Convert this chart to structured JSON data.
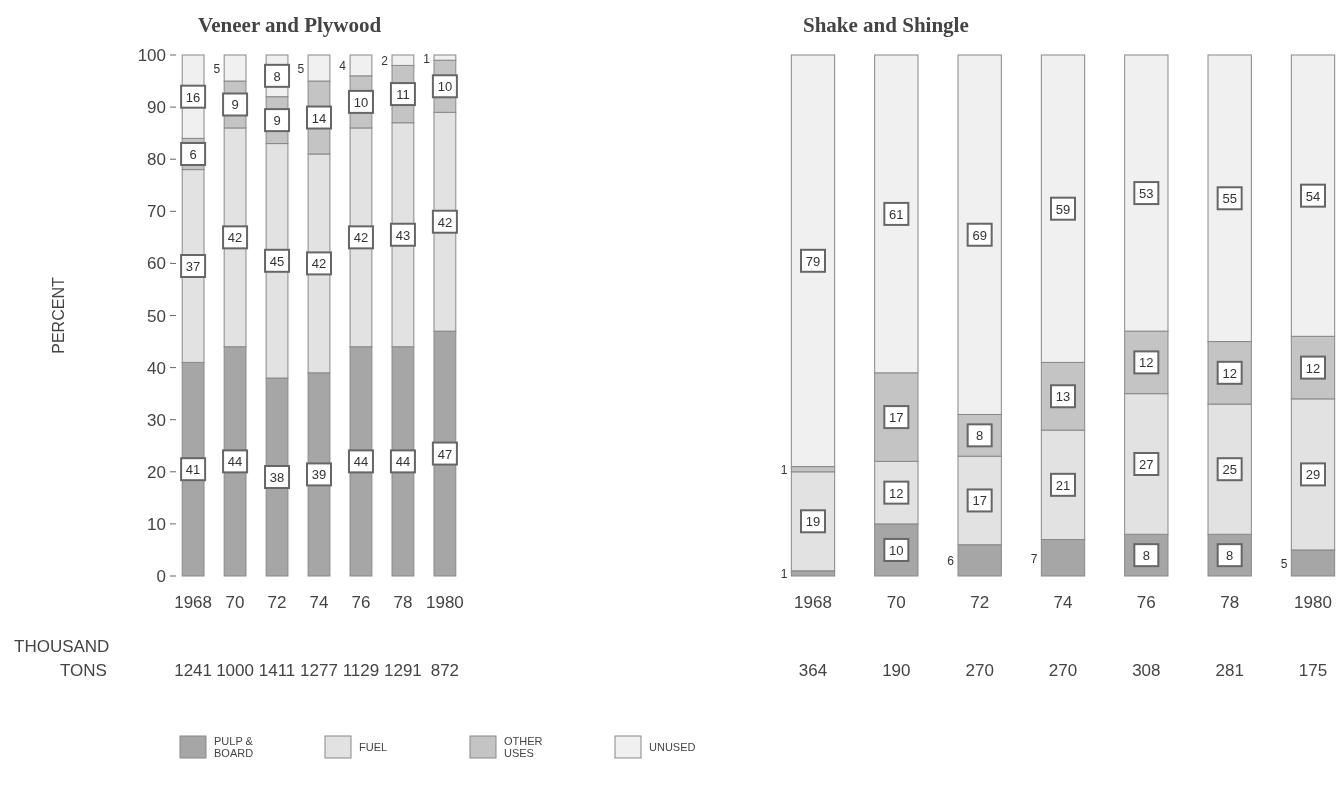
{
  "chart_data": [
    {
      "type": "bar",
      "title": "Veneer and Plywood",
      "ylabel": "PERCENT",
      "stacked": true,
      "data_labels": true,
      "legend": "bottom",
      "categories": [
        "1968",
        "70",
        "72",
        "74",
        "76",
        "78",
        "1980"
      ],
      "series": [
        {
          "name": "PULP & BOARD",
          "color": "#a6a6a6",
          "values": [
            41,
            44,
            38,
            39,
            44,
            44,
            47
          ]
        },
        {
          "name": "FUEL",
          "color": "#e2e2e2",
          "values": [
            37,
            42,
            45,
            42,
            42,
            43,
            42
          ]
        },
        {
          "name": "OTHER USES",
          "color": "#c4c4c4",
          "values": [
            6,
            9,
            9,
            14,
            10,
            11,
            10
          ]
        },
        {
          "name": "UNUSED",
          "color": "#f0f0f0",
          "values": [
            16,
            5,
            8,
            5,
            4,
            2,
            1
          ]
        }
      ],
      "ylim": [
        0,
        100
      ],
      "yticks": [
        0,
        10,
        20,
        30,
        40,
        50,
        60,
        70,
        80,
        90,
        100
      ],
      "annotations": [
        "THOUSAND\nTONS",
        "1241",
        "1000",
        "1411",
        "1277",
        "1129",
        "1291",
        "872"
      ]
    },
    {
      "type": "bar",
      "title": "Shake and Shingle",
      "stacked": true,
      "data_labels": true,
      "tick_labels": "x",
      "categories": [
        "1968",
        "70",
        "72",
        "74",
        "76",
        "78",
        "1980"
      ],
      "series": [
        {
          "color": "#a6a6a6",
          "values": [
            1,
            10,
            6,
            7,
            8,
            8,
            5
          ]
        },
        {
          "color": "#e2e2e2",
          "values": [
            19,
            12,
            17,
            21,
            27,
            25,
            29
          ]
        },
        {
          "color": "#c4c4c4",
          "values": [
            1,
            17,
            8,
            13,
            12,
            12,
            12
          ]
        },
        {
          "color": "#f0f0f0",
          "values": [
            79,
            61,
            69,
            59,
            53,
            55,
            54
          ]
        }
      ],
      "ylim": [
        0,
        100
      ],
      "yticks": [
        0,
        10,
        20,
        30,
        40,
        50,
        60,
        70,
        80,
        90,
        100
      ],
      "annotations": [
        "364",
        "190",
        "270",
        "270",
        "308",
        "281",
        "175"
      ]
    }
  ]
}
